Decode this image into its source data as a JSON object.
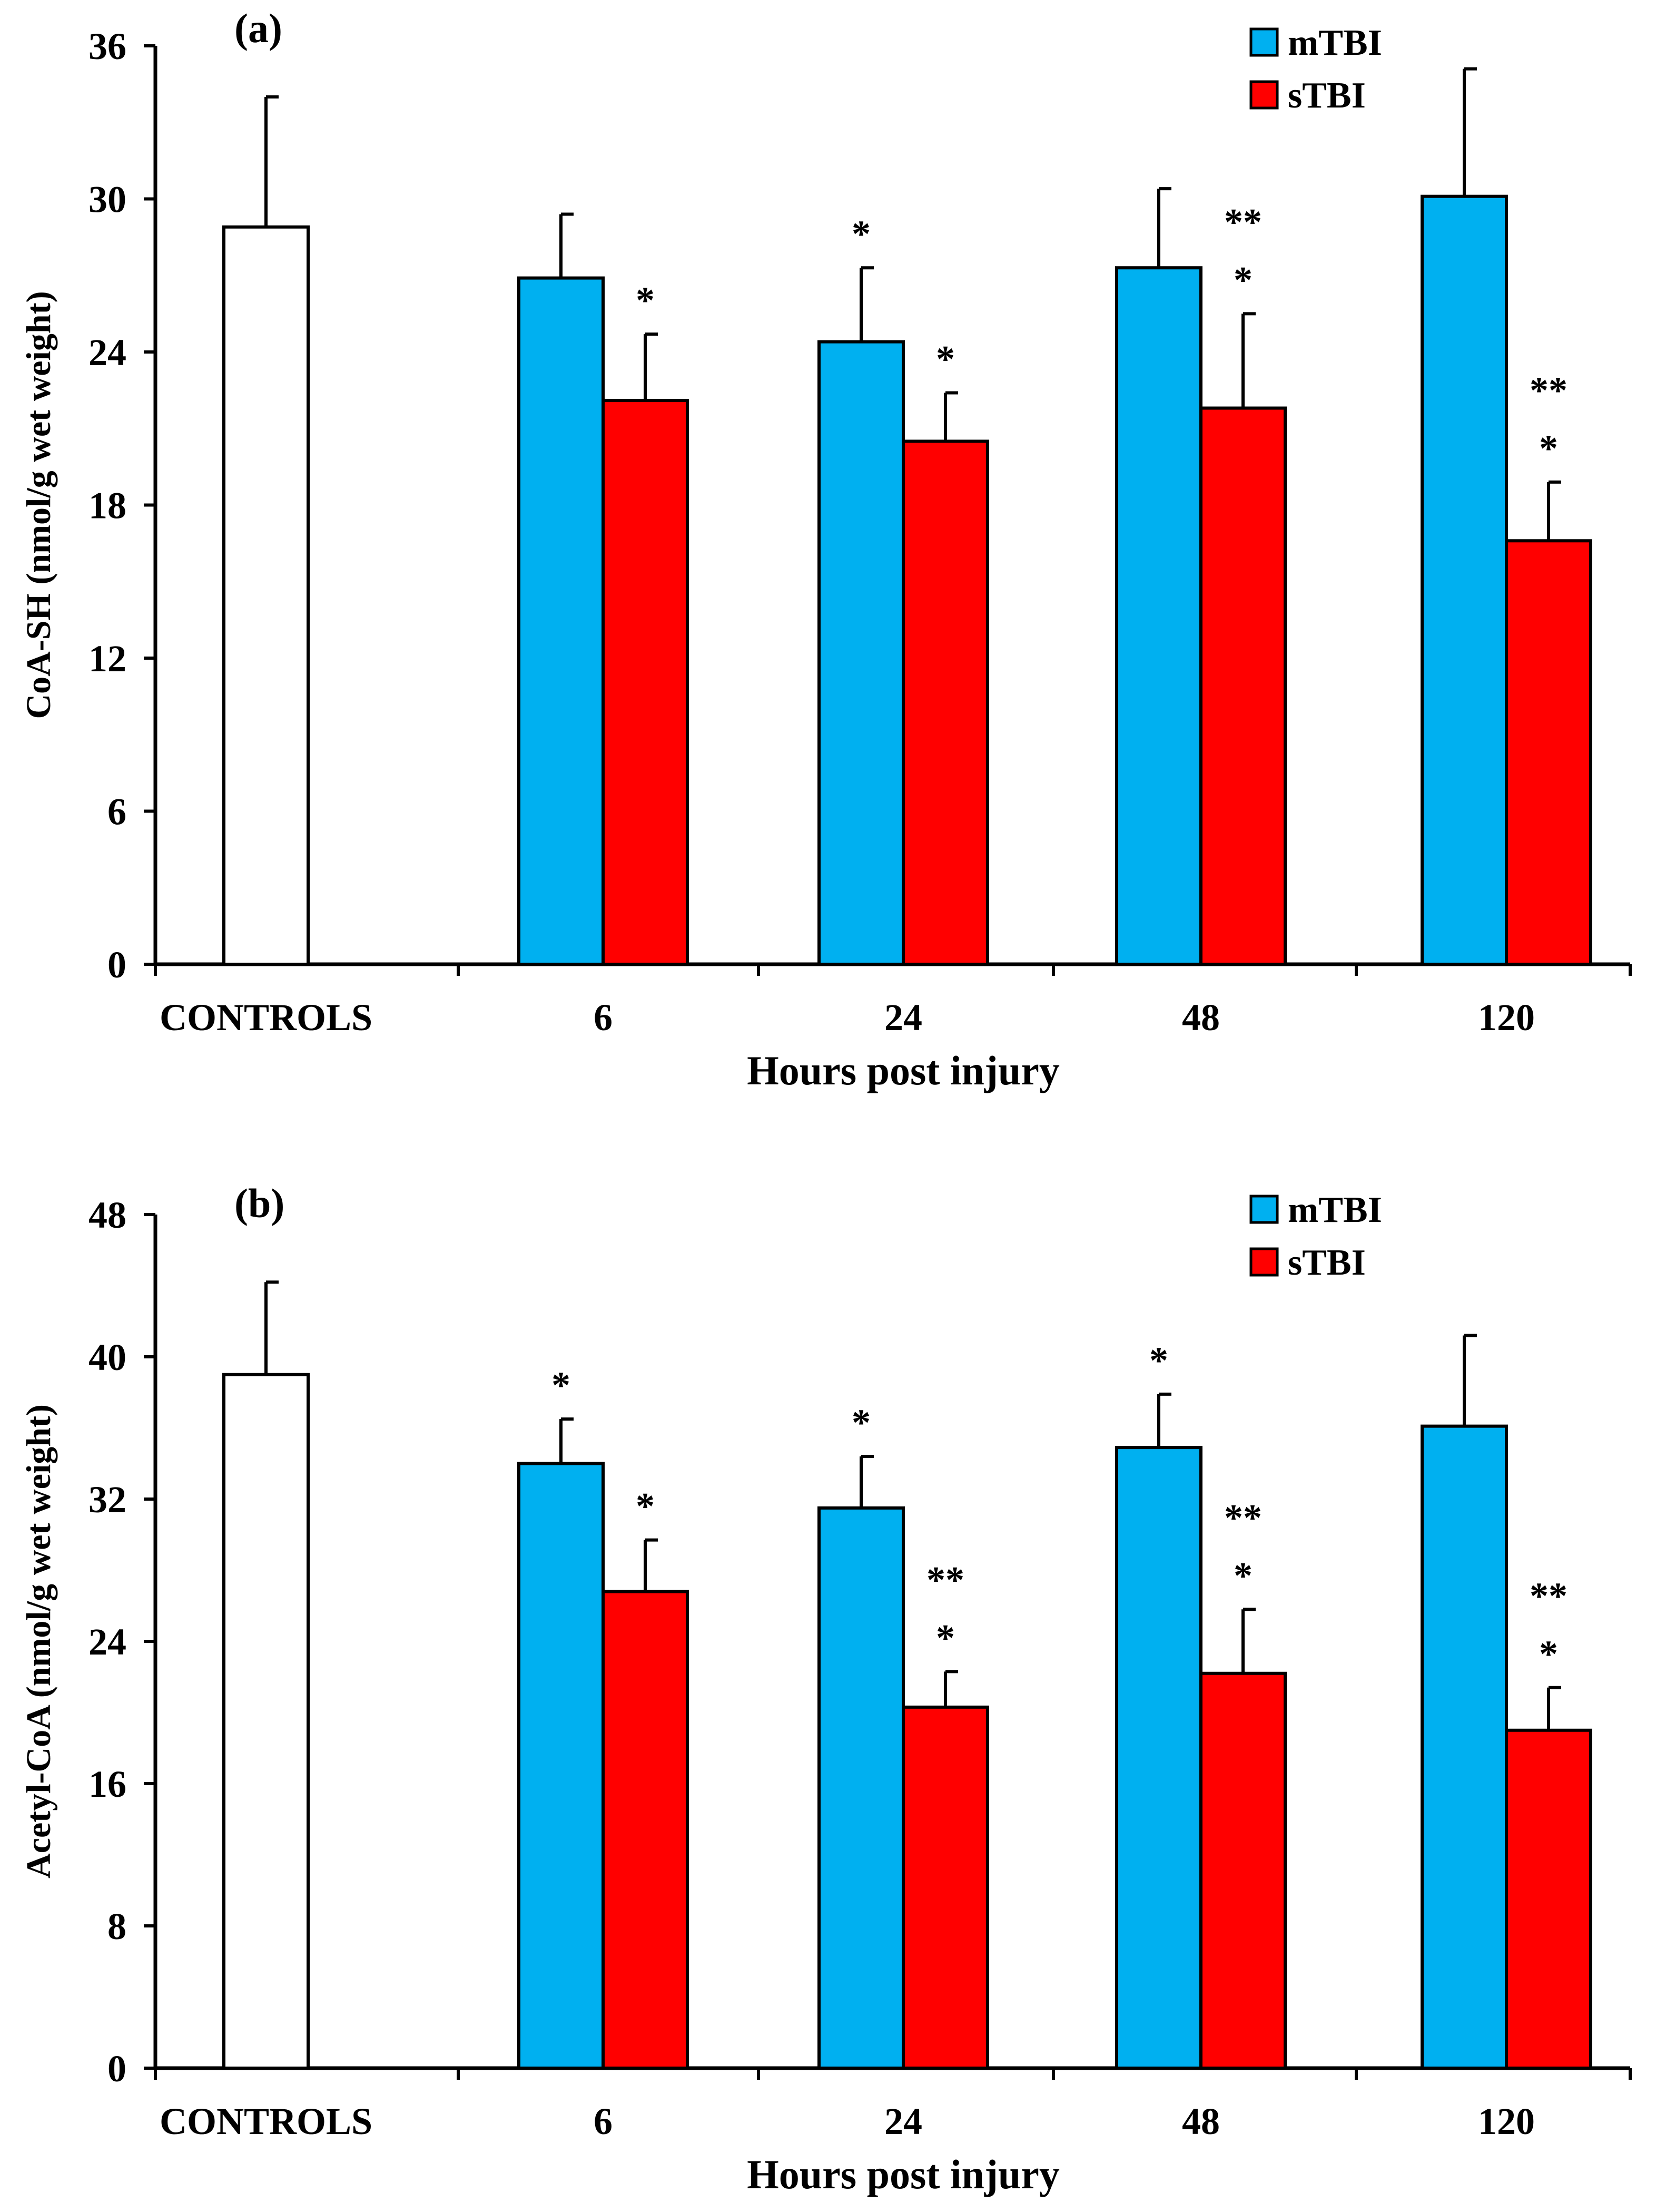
{
  "chart_data": [
    {
      "type": "bar",
      "panel_label": "(a)",
      "ylabel": "CoA-SH (nmol/g wet weight)",
      "xlabel": "Hours post injury",
      "ylim": [
        0,
        36
      ],
      "yticks": [
        0,
        6,
        12,
        18,
        24,
        30,
        36
      ],
      "categories": [
        "CONTROLS",
        "6",
        "24",
        "48",
        "120"
      ],
      "legend": {
        "position": "top-right",
        "entries": [
          "mTBI",
          "sTBI"
        ]
      },
      "colors": {
        "controls": "#ffffff",
        "mTBI": "#00b0f0",
        "sTBI": "#ff0000",
        "outline": "#000000"
      },
      "controls": {
        "value": 28.9,
        "error": 5.1
      },
      "series": [
        {
          "name": "mTBI",
          "values": [
            null,
            26.9,
            24.4,
            27.3,
            30.1
          ],
          "errors": [
            null,
            2.5,
            2.9,
            3.1,
            5.0
          ],
          "annotations": [
            "",
            "",
            "*",
            "",
            ""
          ]
        },
        {
          "name": "sTBI",
          "values": [
            null,
            22.1,
            20.5,
            21.8,
            16.6
          ],
          "errors": [
            null,
            2.6,
            1.9,
            3.7,
            2.3
          ],
          "annotations": [
            "",
            "*",
            "*",
            "*",
            "*"
          ],
          "annotations2": [
            "",
            "",
            "",
            "**",
            "**"
          ]
        }
      ]
    },
    {
      "type": "bar",
      "panel_label": "(b)",
      "ylabel": "Acetyl-CoA (nmol/g wet weight)",
      "xlabel": "Hours post injury",
      "ylim": [
        0,
        48
      ],
      "yticks": [
        0,
        8,
        16,
        24,
        32,
        40,
        48
      ],
      "categories": [
        "CONTROLS",
        "6",
        "24",
        "48",
        "120"
      ],
      "legend": {
        "position": "top-right",
        "entries": [
          "mTBI",
          "sTBI"
        ]
      },
      "colors": {
        "controls": "#ffffff",
        "mTBI": "#00b0f0",
        "sTBI": "#ff0000",
        "outline": "#000000"
      },
      "controls": {
        "value": 39.0,
        "error": 5.2
      },
      "series": [
        {
          "name": "mTBI",
          "values": [
            null,
            34.0,
            31.5,
            34.9,
            36.1
          ],
          "errors": [
            null,
            2.5,
            2.9,
            3.0,
            5.1
          ],
          "annotations": [
            "",
            "*",
            "*",
            "*",
            ""
          ]
        },
        {
          "name": "sTBI",
          "values": [
            null,
            26.8,
            20.3,
            22.2,
            19.0
          ],
          "errors": [
            null,
            2.9,
            2.0,
            3.6,
            2.4
          ],
          "annotations": [
            "",
            "*",
            "*",
            "*",
            "*"
          ],
          "annotations2": [
            "",
            "",
            "**",
            "**",
            "**"
          ]
        }
      ]
    }
  ]
}
